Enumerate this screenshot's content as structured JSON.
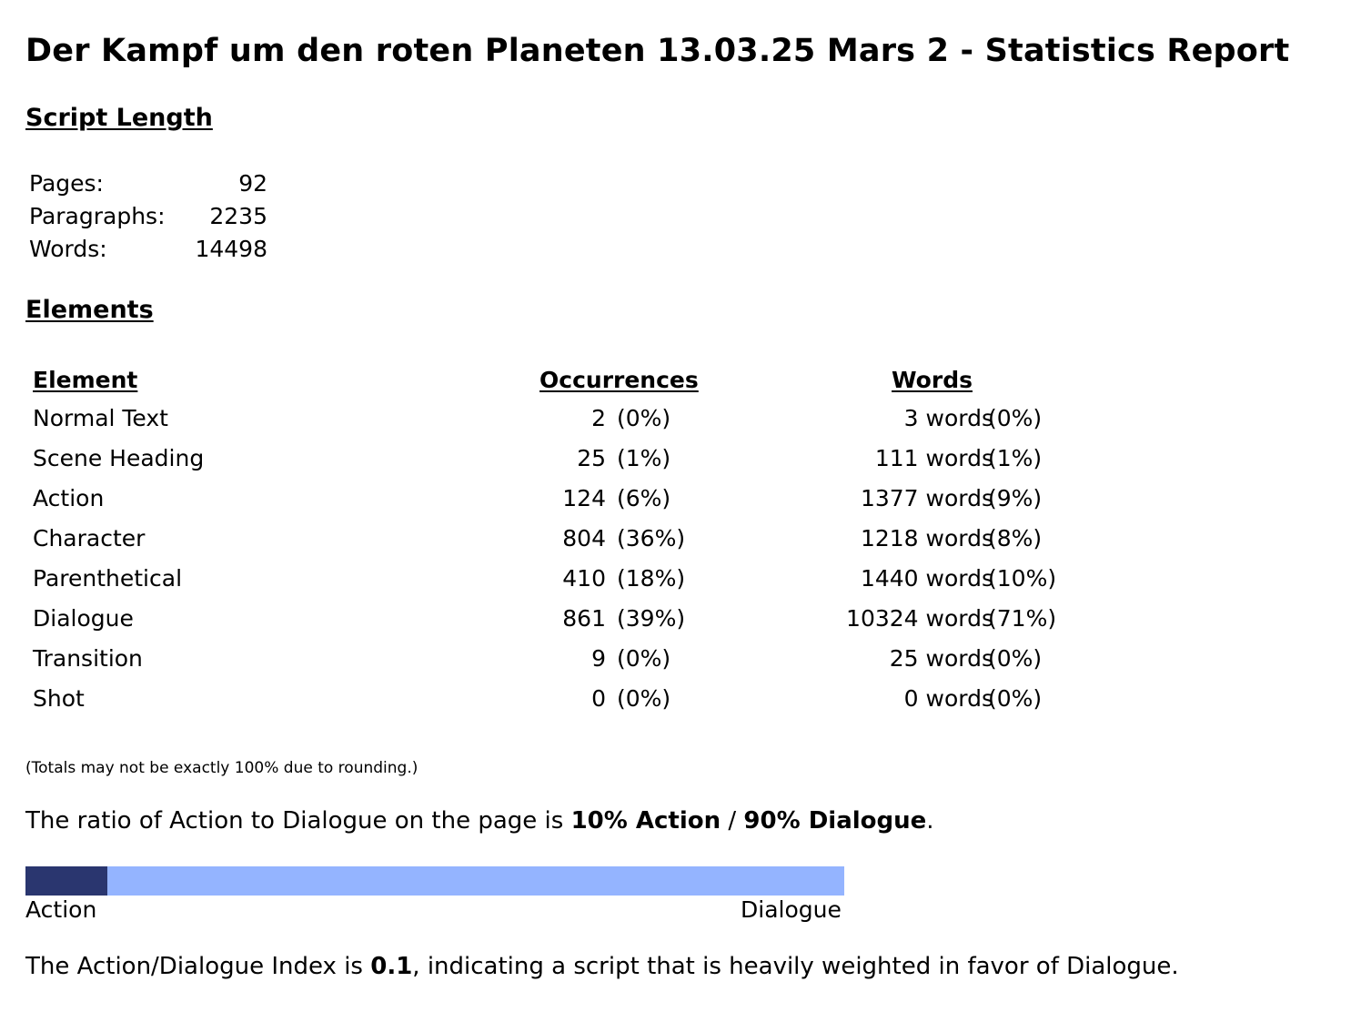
{
  "title": "Der Kampf um den roten Planeten 13.03.25 Mars 2 - Statistics Report",
  "script_length": {
    "heading": "Script Length",
    "rows": [
      {
        "label": "Pages:",
        "value": "92"
      },
      {
        "label": "Paragraphs:",
        "value": "2235"
      },
      {
        "label": "Words:",
        "value": "14498"
      }
    ]
  },
  "elements": {
    "heading": "Elements",
    "columns": {
      "element": "Element",
      "occurrences": "Occurrences",
      "words": "Words"
    },
    "rows": [
      {
        "name": "Normal Text",
        "occ": "2",
        "occ_pct": "(0%)",
        "words": "3 words",
        "words_pct": "(0%)"
      },
      {
        "name": "Scene Heading",
        "occ": "25",
        "occ_pct": "(1%)",
        "words": "111 words",
        "words_pct": "(1%)"
      },
      {
        "name": "Action",
        "occ": "124",
        "occ_pct": "(6%)",
        "words": "1377 words",
        "words_pct": "(9%)"
      },
      {
        "name": "Character",
        "occ": "804",
        "occ_pct": "(36%)",
        "words": "1218 words",
        "words_pct": "(8%)"
      },
      {
        "name": "Parenthetical",
        "occ": "410",
        "occ_pct": "(18%)",
        "words": "1440 words",
        "words_pct": "(10%)"
      },
      {
        "name": "Dialogue",
        "occ": "861",
        "occ_pct": "(39%)",
        "words": "10324 words",
        "words_pct": "(71%)"
      },
      {
        "name": "Transition",
        "occ": "9",
        "occ_pct": "(0%)",
        "words": "25 words",
        "words_pct": "(0%)"
      },
      {
        "name": "Shot",
        "occ": "0",
        "occ_pct": "(0%)",
        "words": "0 words",
        "words_pct": "(0%)"
      }
    ]
  },
  "footnote": "(Totals may not be exactly 100% due to rounding.)",
  "ratio": {
    "prefix": "The ratio of Action to Dialogue on the page is ",
    "action_text": "10% Action",
    "separator": " / ",
    "dialogue_text": "90% Dialogue",
    "suffix": ".",
    "action_fraction": 0.1,
    "action_color": "#2a366f",
    "dialogue_color": "#94b4ff",
    "bar_label_action": "Action",
    "bar_label_dialogue": "Dialogue"
  },
  "index": {
    "prefix": "The Action/Dialogue Index is ",
    "value": "0.1",
    "suffix": ", indicating a script that is heavily weighted in favor of Dialogue."
  }
}
